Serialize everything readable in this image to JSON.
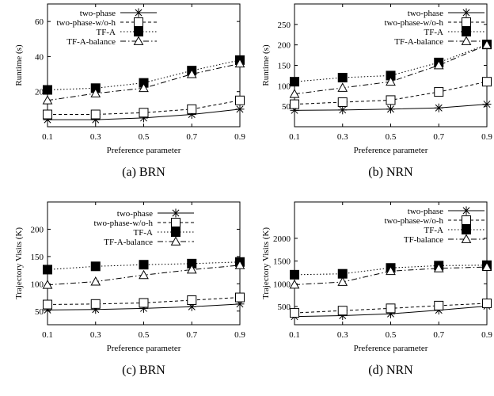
{
  "chart_data": [
    {
      "type": "line",
      "caption": "(a)  BRN",
      "xlabel": "Preference parameter",
      "ylabel": "Runtime (s)",
      "x": [
        0.1,
        0.3,
        0.5,
        0.7,
        0.9
      ],
      "xticks": [
        "0.1",
        "0.3",
        "0.5",
        "0.7",
        "0.9"
      ],
      "ylim": [
        0,
        70
      ],
      "yticks": [
        20,
        40,
        60
      ],
      "legend_position": "top-left",
      "series": [
        {
          "name": "two-phase",
          "values": [
            4,
            4,
            5,
            7,
            10
          ]
        },
        {
          "name": "two-phase-w/o-h",
          "values": [
            7,
            7,
            8,
            10,
            15
          ]
        },
        {
          "name": "TF-A",
          "values": [
            21,
            22,
            25,
            32,
            38
          ]
        },
        {
          "name": "TF-A-balance",
          "values": [
            15,
            19,
            22,
            30,
            36
          ]
        }
      ]
    },
    {
      "type": "line",
      "caption": "(b)  NRN",
      "xlabel": "Preference parameter",
      "ylabel": "Runtime (s)",
      "x": [
        0.1,
        0.3,
        0.5,
        0.7,
        0.9
      ],
      "xticks": [
        "0.1",
        "0.3",
        "0.5",
        "0.7",
        "0.9"
      ],
      "ylim": [
        0,
        300
      ],
      "yticks": [
        50,
        100,
        150,
        200,
        250
      ],
      "legend_position": "top-right",
      "series": [
        {
          "name": "two-phase",
          "values": [
            40,
            41,
            43,
            46,
            55
          ]
        },
        {
          "name": "two-phase-w/o-h",
          "values": [
            55,
            60,
            65,
            85,
            110
          ]
        },
        {
          "name": "TF-A",
          "values": [
            110,
            120,
            125,
            157,
            201
          ]
        },
        {
          "name": "TF-A-balance",
          "values": [
            80,
            95,
            110,
            150,
            200
          ]
        }
      ]
    },
    {
      "type": "line",
      "caption": "(c)  BRN",
      "xlabel": "Preference parameter",
      "ylabel": "Trajectory Visits (K)",
      "x": [
        0.1,
        0.3,
        0.5,
        0.7,
        0.9
      ],
      "xticks": [
        "0.1",
        "0.3",
        "0.5",
        "0.7",
        "0.9"
      ],
      "ylim": [
        25,
        250
      ],
      "yticks": [
        50,
        100,
        150,
        200
      ],
      "legend_position": "top-right",
      "series": [
        {
          "name": "two-phase",
          "values": [
            52,
            53,
            55,
            58,
            63
          ]
        },
        {
          "name": "two-phase-w/o-h",
          "values": [
            62,
            63,
            65,
            70,
            75
          ]
        },
        {
          "name": "TF-A",
          "values": [
            126,
            132,
            135,
            137,
            140
          ]
        },
        {
          "name": "TF-A-balance",
          "values": [
            98,
            104,
            116,
            126,
            134
          ]
        }
      ]
    },
    {
      "type": "line",
      "caption": "(d)  NRN",
      "xlabel": "Preference parameter",
      "ylabel": "Trajectory Visits (K)",
      "x": [
        0.1,
        0.3,
        0.5,
        0.7,
        0.9
      ],
      "xticks": [
        "0.1",
        "0.3",
        "0.5",
        "0.7",
        "0.9"
      ],
      "ylim": [
        100,
        2800
      ],
      "yticks": [
        500,
        1000,
        1500,
        2000
      ],
      "legend_position": "top-right",
      "series": [
        {
          "name": "two-phase",
          "values": [
            280,
            300,
            340,
            420,
            510
          ]
        },
        {
          "name": "two-phase-w/o-h",
          "values": [
            360,
            410,
            460,
            520,
            570
          ]
        },
        {
          "name": "TF-A",
          "values": [
            1200,
            1220,
            1350,
            1400,
            1410
          ]
        },
        {
          "name": "TF-balance",
          "values": [
            980,
            1040,
            1280,
            1340,
            1370
          ]
        }
      ]
    }
  ]
}
